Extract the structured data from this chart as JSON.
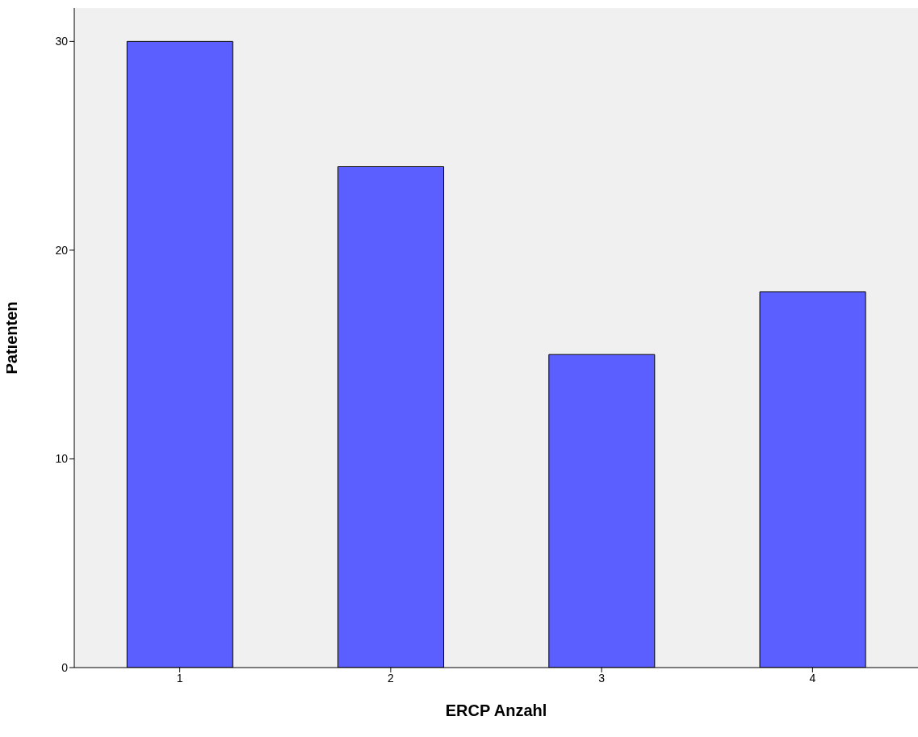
{
  "chart_data": {
    "type": "bar",
    "xlabel": "ERCP Anzahl",
    "ylabel": "Patienten",
    "categories": [
      "1",
      "2",
      "3",
      "4"
    ],
    "values": [
      30,
      24,
      15,
      18
    ],
    "color": "#5b5fff",
    "ylim": [
      0,
      31.6
    ],
    "yticks": [
      0,
      10,
      20,
      30
    ],
    "grid": false
  }
}
